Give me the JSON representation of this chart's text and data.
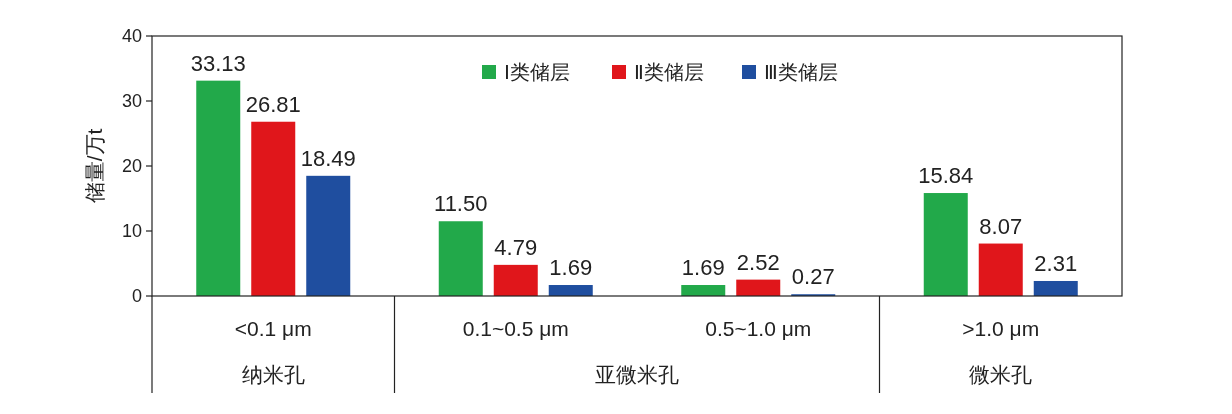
{
  "chart_data": {
    "type": "bar",
    "ylabel": "储量/万t",
    "categories": [
      "<0.1 μm",
      "0.1~0.5 μm",
      "0.5~1.0 μm",
      ">1.0 μm"
    ],
    "series": [
      {
        "name": "Ⅰ类储层",
        "color": "#22a94a",
        "values": [
          33.13,
          11.5,
          1.69,
          15.84
        ],
        "value_labels": [
          "33.13",
          "11.50",
          "1.69",
          "15.84"
        ]
      },
      {
        "name": "Ⅱ类储层",
        "color": "#e0161b",
        "values": [
          26.81,
          4.79,
          2.52,
          8.07
        ],
        "value_labels": [
          "26.81",
          "4.79",
          "2.52",
          "8.07"
        ]
      },
      {
        "name": "Ⅲ类储层",
        "color": "#1f4e9f",
        "values": [
          18.49,
          1.69,
          0.27,
          2.31
        ],
        "value_labels": [
          "18.49",
          "1.69",
          "0.27",
          "2.31"
        ]
      }
    ],
    "ylim": [
      0,
      40
    ],
    "yticks": [
      0,
      10,
      20,
      30,
      40
    ],
    "annotations": [
      "纳米孔",
      "亚微米孔",
      "微米孔"
    ],
    "data_labels": true,
    "grid": false,
    "legend": "top"
  }
}
